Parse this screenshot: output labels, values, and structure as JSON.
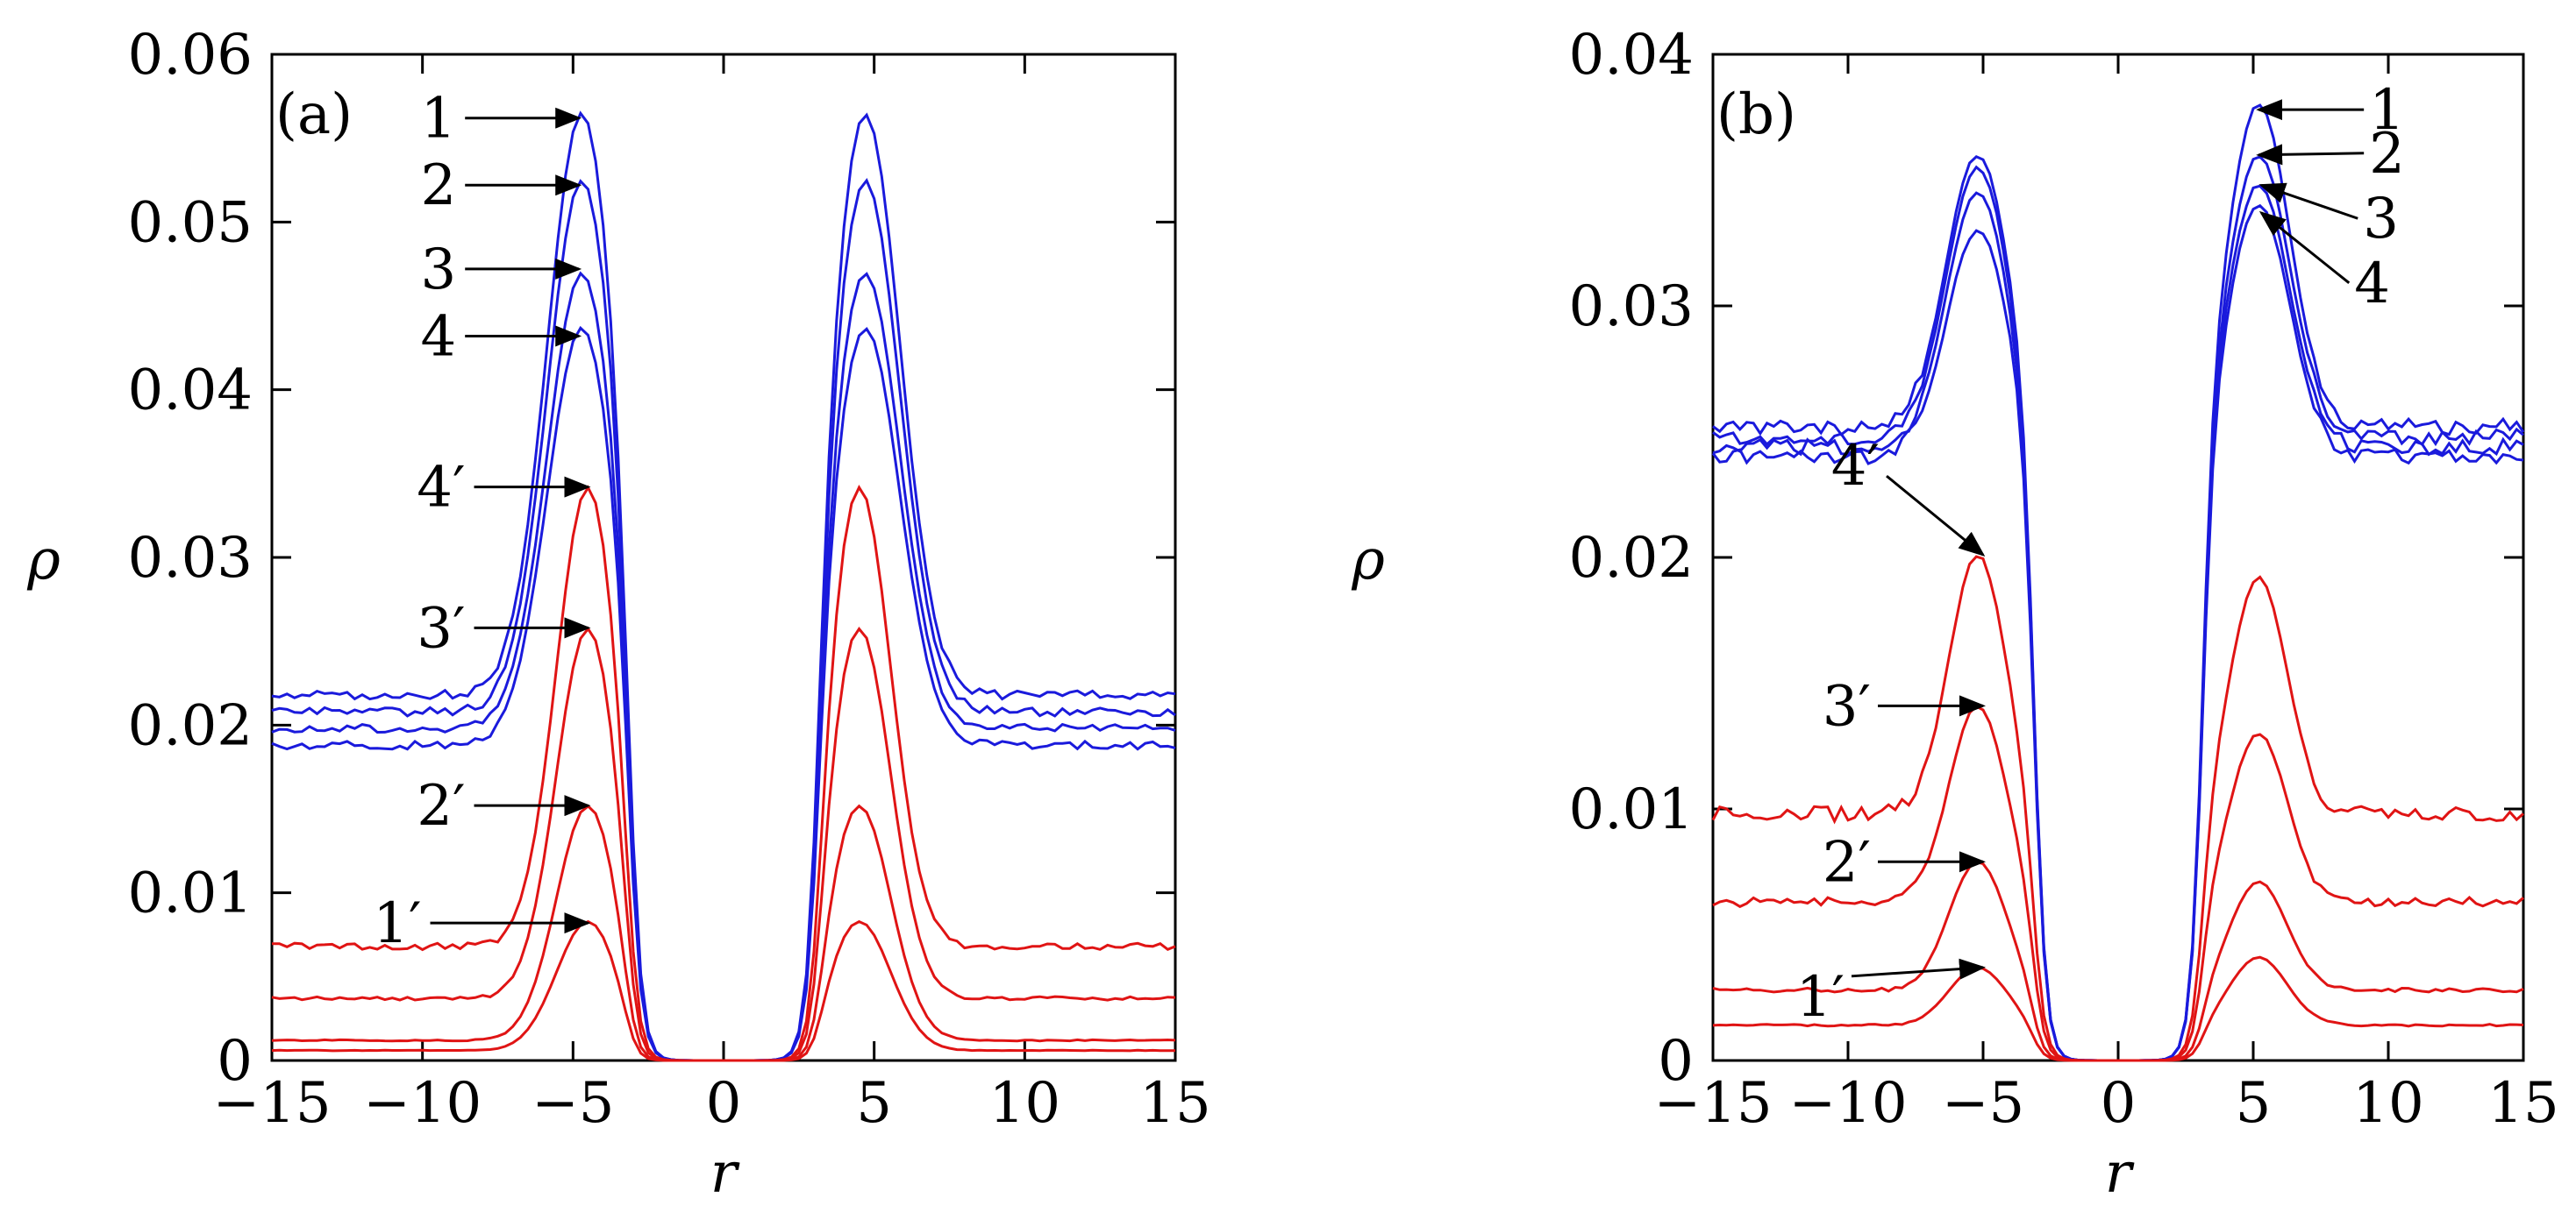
{
  "chart_data": [
    {
      "type": "line",
      "panel_label": "(a)",
      "xlabel": "r",
      "ylabel": "ρ",
      "xlim": [
        -15,
        15
      ],
      "ylim": [
        0,
        0.06
      ],
      "xticks": [
        -15,
        -10,
        -5,
        0,
        5,
        10,
        15
      ],
      "xtick_labels": [
        "−15",
        "−10",
        "−5",
        "0",
        "5",
        "10",
        "15"
      ],
      "yticks": [
        0,
        0.01,
        0.02,
        0.03,
        0.04,
        0.05,
        0.06
      ],
      "ytick_labels": [
        "0",
        "0.01",
        "0.02",
        "0.03",
        "0.04",
        "0.05",
        "0.06"
      ],
      "series": [
        {
          "name": "1",
          "color": "#1a1adc",
          "peak": 0.0565,
          "baseline": 0.0218,
          "center": 4.7
        },
        {
          "name": "2",
          "color": "#1a1adc",
          "peak": 0.0525,
          "baseline": 0.0208,
          "center": 4.7
        },
        {
          "name": "3",
          "color": "#1a1adc",
          "peak": 0.047,
          "baseline": 0.0198,
          "center": 4.7
        },
        {
          "name": "4",
          "color": "#1a1adc",
          "peak": 0.0437,
          "baseline": 0.0188,
          "center": 4.7
        },
        {
          "name": "4′",
          "color": "#e01414",
          "peak": 0.0342,
          "baseline": 0.0068,
          "center": 4.5
        },
        {
          "name": "3′",
          "color": "#e01414",
          "peak": 0.0258,
          "baseline": 0.0037,
          "center": 4.5
        },
        {
          "name": "2′",
          "color": "#e01414",
          "peak": 0.0152,
          "baseline": 0.0012,
          "center": 4.5
        },
        {
          "name": "1′",
          "color": "#e01414",
          "peak": 0.0083,
          "baseline": 0.0006,
          "center": 4.5
        }
      ],
      "annotations": [
        {
          "label": "1",
          "x": -4.8,
          "y": 0.0562
        },
        {
          "label": "2",
          "x": -4.8,
          "y": 0.0522
        },
        {
          "label": "3",
          "x": -4.8,
          "y": 0.0472
        },
        {
          "label": "4",
          "x": -4.8,
          "y": 0.0432
        },
        {
          "label": "4′",
          "x": -4.5,
          "y": 0.0342
        },
        {
          "label": "3′",
          "x": -4.5,
          "y": 0.0258
        },
        {
          "label": "2′",
          "x": -4.5,
          "y": 0.0152
        },
        {
          "label": "1′",
          "x": -4.5,
          "y": 0.0082
        }
      ]
    },
    {
      "type": "line",
      "panel_label": "(b)",
      "xlabel": "r",
      "ylabel": "ρ",
      "xlim": [
        -15,
        15
      ],
      "ylim": [
        0,
        0.04
      ],
      "xticks": [
        -15,
        -10,
        -5,
        0,
        5,
        10,
        15
      ],
      "xtick_labels": [
        "−15",
        "−10",
        "−5",
        "0",
        "5",
        "10",
        "15"
      ],
      "yticks": [
        0,
        0.01,
        0.02,
        0.03,
        0.04
      ],
      "ytick_labels": [
        "0",
        "0.01",
        "0.02",
        "0.03",
        "0.04"
      ],
      "series": [
        {
          "name": "1",
          "color": "#1a1adc",
          "peak_left": 0.036,
          "peak_right": 0.038,
          "baseline": 0.0252,
          "center": 5.2
        },
        {
          "name": "2",
          "color": "#1a1adc",
          "peak_left": 0.0355,
          "peak_right": 0.036,
          "baseline": 0.0248,
          "center": 5.2
        },
        {
          "name": "3",
          "color": "#1a1adc",
          "peak_left": 0.0345,
          "peak_right": 0.0348,
          "baseline": 0.0244,
          "center": 5.2
        },
        {
          "name": "4",
          "color": "#1a1adc",
          "peak_left": 0.033,
          "peak_right": 0.034,
          "baseline": 0.024,
          "center": 5.2
        },
        {
          "name": "4′",
          "color": "#e01414",
          "peak_left": 0.0201,
          "peak_right": 0.0192,
          "baseline": 0.0098,
          "center": 5.2
        },
        {
          "name": "3′",
          "color": "#e01414",
          "peak_left": 0.0141,
          "peak_right": 0.013,
          "baseline": 0.0063,
          "center": 5.2
        },
        {
          "name": "2′",
          "color": "#e01414",
          "peak_left": 0.0079,
          "peak_right": 0.0071,
          "baseline": 0.0028,
          "center": 5.2
        },
        {
          "name": "1′",
          "color": "#e01414",
          "peak_left": 0.0037,
          "peak_right": 0.0041,
          "baseline": 0.0014,
          "center": 5.2
        }
      ],
      "annotations": [
        {
          "label": "1",
          "x": 5.2,
          "y": 0.0378
        },
        {
          "label": "2",
          "x": 5.2,
          "y": 0.036
        },
        {
          "label": "3",
          "x": 5.3,
          "y": 0.0348
        },
        {
          "label": "4",
          "x": 5.3,
          "y": 0.0337
        },
        {
          "label": "4′",
          "x": -5.0,
          "y": 0.0201
        },
        {
          "label": "3′",
          "x": -5.0,
          "y": 0.0141
        },
        {
          "label": "2′",
          "x": -5.0,
          "y": 0.0079
        },
        {
          "label": "1′",
          "x": -5.0,
          "y": 0.0037
        }
      ]
    }
  ]
}
